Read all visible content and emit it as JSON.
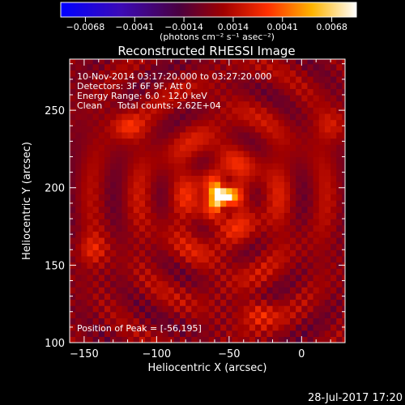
{
  "chart_data": {
    "type": "heatmap",
    "title": "Reconstructed RHESSI Image",
    "xlabel": "Heliocentric X (arcsec)",
    "ylabel": "Heliocentric Y (arcsec)",
    "xlim": [
      -160,
      30
    ],
    "ylim": [
      100,
      283
    ],
    "x_ticks": [
      -150,
      -100,
      -50,
      0
    ],
    "x_tick_labels": [
      "−150",
      "−100",
      "−50",
      "0"
    ],
    "y_ticks": [
      100,
      150,
      200,
      250
    ],
    "y_tick_labels": [
      "100",
      "150",
      "200",
      "250"
    ],
    "annotations": [
      "10-Nov-2014 03:17:20.000 to 03:27:20.000",
      "Detectors: 3F 6F 9F, Att 0",
      "Energy Range: 6.0 - 12.0 keV",
      "Clean",
      "Total counts: 2.62E+04"
    ],
    "peak_label": "Position of Peak = [-56,195]",
    "peak": {
      "x": -56,
      "y": 195,
      "value": 0.0068
    },
    "sources": [
      {
        "x": -56,
        "y": 195,
        "value": 0.0068,
        "sigma_x": 6,
        "sigma_y": 4
      },
      {
        "x": -120,
        "y": 240,
        "value": 0.0022,
        "sigma_x": 8,
        "sigma_y": 6
      },
      {
        "x": -145,
        "y": 160,
        "value": 0.0018,
        "sigma_x": 7,
        "sigma_y": 7
      },
      {
        "x": -30,
        "y": 120,
        "value": 0.002,
        "sigma_x": 9,
        "sigma_y": 6
      },
      {
        "x": 20,
        "y": 240,
        "value": 0.0015,
        "sigma_x": 7,
        "sigma_y": 7
      }
    ],
    "colorbar": {
      "colormap": "blue-purple-red-yellow-white",
      "range": [
        -0.0068,
        0.0068
      ],
      "tick_labels": [
        "−0.0068",
        "−0.0041",
        "−0.0014",
        "0.0014",
        "0.0041",
        "0.0068"
      ],
      "unit_label": "(photons cm⁻² s⁻¹ asec⁻²)"
    }
  },
  "footer": {
    "timestamp": "28-Jul-2017 17:20"
  }
}
